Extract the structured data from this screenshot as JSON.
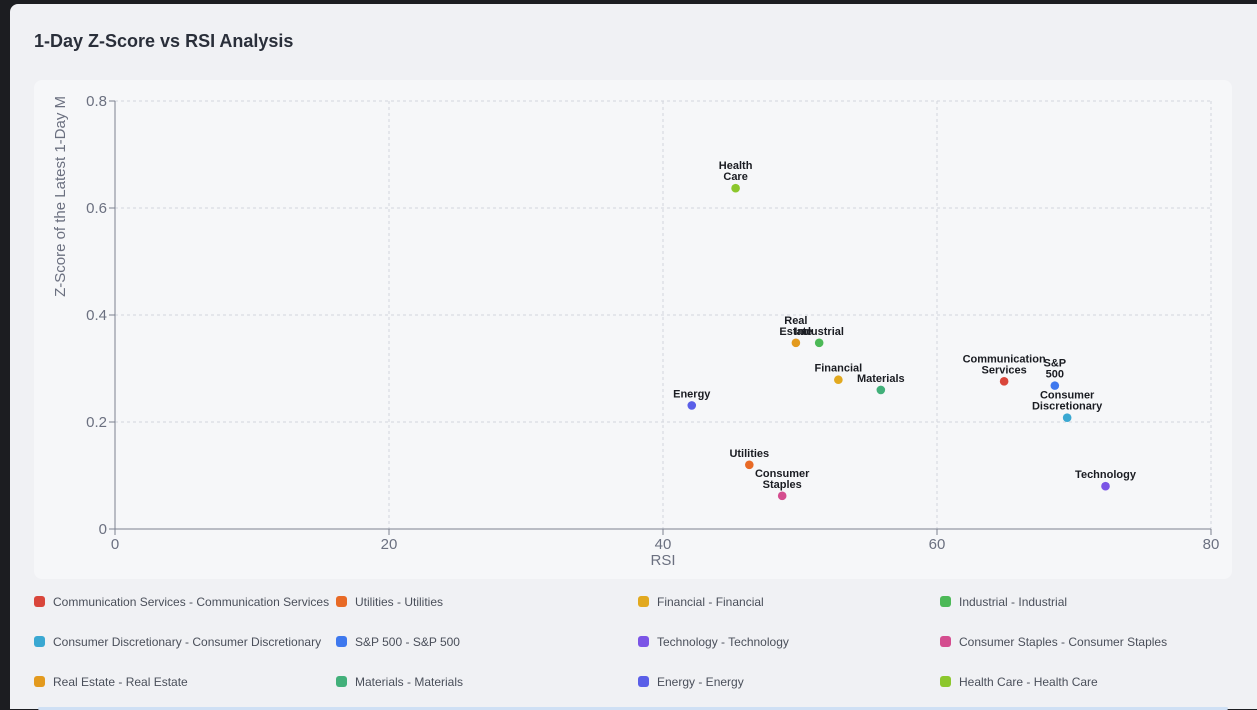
{
  "title": "1-Day Z-Score vs RSI Analysis",
  "chart_data": {
    "type": "scatter",
    "title": "1-Day Z-Score vs RSI Analysis",
    "xlabel": "RSI",
    "ylabel": "Z-Score of the Latest 1-Day M",
    "xlim": [
      0,
      80
    ],
    "ylim": [
      0,
      0.8
    ],
    "xticks": [
      0,
      20,
      40,
      60,
      80
    ],
    "yticks": [
      0,
      0.2,
      0.4,
      0.6,
      0.8
    ],
    "grid": true,
    "legend_position": "bottom",
    "points": [
      {
        "label": "Communication Services",
        "legend": "Communication Services - Communication Services",
        "x": 64.9,
        "y": 0.276,
        "color": "#d9463b"
      },
      {
        "label": "Utilities",
        "legend": "Utilities - Utilities",
        "x": 46.3,
        "y": 0.12,
        "color": "#e86a26"
      },
      {
        "label": "Financial",
        "legend": "Financial - Financial",
        "x": 52.8,
        "y": 0.279,
        "color": "#e2a91f"
      },
      {
        "label": "Industrial",
        "legend": "Industrial - Industrial",
        "x": 51.4,
        "y": 0.348,
        "color": "#4cb957"
      },
      {
        "label": "Consumer Discretionary",
        "legend": "Consumer Discretionary - Consumer Discretionary",
        "x": 69.5,
        "y": 0.208,
        "color": "#3aa8d2"
      },
      {
        "label": "S&P 500",
        "legend": "S&P 500 - S&P 500",
        "x": 68.6,
        "y": 0.268,
        "color": "#3e78ee"
      },
      {
        "label": "Technology",
        "legend": "Technology - Technology",
        "x": 72.3,
        "y": 0.08,
        "color": "#7b55e6"
      },
      {
        "label": "Consumer Staples",
        "legend": "Consumer Staples - Consumer Staples",
        "x": 48.7,
        "y": 0.062,
        "color": "#d44d8f"
      },
      {
        "label": "Real Estate",
        "legend": "Real Estate - Real Estate",
        "x": 49.7,
        "y": 0.348,
        "color": "#e39a1e"
      },
      {
        "label": "Materials",
        "legend": "Materials - Materials",
        "x": 55.9,
        "y": 0.26,
        "color": "#42b07a"
      },
      {
        "label": "Energy",
        "legend": "Energy - Energy",
        "x": 42.1,
        "y": 0.231,
        "color": "#5a5fe8"
      },
      {
        "label": "Health Care",
        "legend": "Health Care - Health Care",
        "x": 45.3,
        "y": 0.637,
        "color": "#8cc72d"
      }
    ]
  }
}
